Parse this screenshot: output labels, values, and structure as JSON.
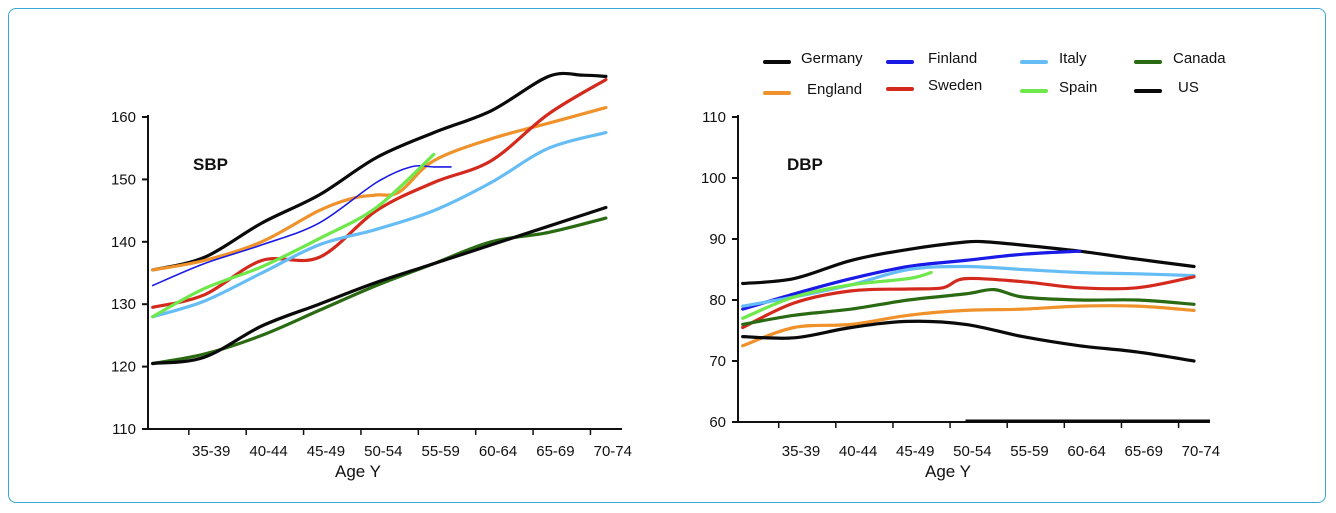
{
  "colors": {
    "Germany": "#0a0a0a",
    "England": "#f0922b",
    "Finland": "#1a1ae6",
    "Sweden": "#d42a1e",
    "Italy": "#66bdf5",
    "Spain": "#6ee84a",
    "Canada": "#2a6a12",
    "US": "#0a0a0a"
  },
  "legend": {
    "entries": [
      "Germany",
      "England",
      "Finland",
      "Sweden",
      "Italy",
      "Spain",
      "Canada",
      "US"
    ]
  },
  "chart_data": [
    {
      "type": "line",
      "title": "SBP",
      "xlabel": "Age Y",
      "categories": [
        "35-39",
        "40-44",
        "45-49",
        "50-54",
        "55-59",
        "60-64",
        "65-69",
        "70-74"
      ],
      "yticks": [
        110,
        120,
        130,
        140,
        150,
        160
      ],
      "ylim": [
        110,
        167
      ],
      "series": [
        {
          "name": "Germany",
          "x": [
            30.5,
            35,
            40,
            45,
            50,
            55,
            60,
            65,
            68,
            70
          ],
          "y": [
            135.5,
            137.5,
            143,
            147.5,
            153.5,
            157.5,
            161,
            166.5,
            166.7,
            166.5
          ]
        },
        {
          "name": "England",
          "x": [
            30.5,
            35,
            40,
            45,
            48,
            50,
            52,
            55,
            60,
            65,
            70
          ],
          "y": [
            135.5,
            137,
            140,
            145,
            147,
            147.5,
            148,
            153,
            156.5,
            159,
            161.5
          ]
        },
        {
          "name": "Finland",
          "x": [
            30.5,
            35,
            40,
            45,
            50,
            53,
            55,
            56.5
          ],
          "y": [
            133,
            136.5,
            139.5,
            143,
            149.5,
            152,
            152,
            152
          ]
        },
        {
          "name": "Sweden",
          "x": [
            30.5,
            35,
            40,
            45,
            50,
            55,
            60,
            65,
            70
          ],
          "y": [
            129.5,
            131.5,
            137,
            137.5,
            145,
            149.5,
            153,
            160.5,
            166
          ]
        },
        {
          "name": "Italy",
          "x": [
            30.5,
            35,
            40,
            45,
            50,
            55,
            60,
            65,
            70
          ],
          "y": [
            128,
            130.5,
            135,
            139.5,
            142,
            145,
            149.5,
            155,
            157.5
          ]
        },
        {
          "name": "Canada",
          "x": [
            30.5,
            35,
            40,
            45,
            50,
            55,
            60,
            65,
            70
          ],
          "y": [
            120.5,
            122,
            125,
            129,
            133,
            136.5,
            140,
            141.5,
            143.8
          ]
        },
        {
          "name": "Spain",
          "x": [
            30.5,
            35,
            40,
            45,
            50,
            55,
            60,
            65,
            70
          ],
          "y": [
            128,
            132.5,
            136,
            140.5,
            145.5,
            154,
            null,
            null,
            null
          ]
        },
        {
          "name": "US",
          "x": [
            30.5,
            35,
            40,
            45,
            50,
            55,
            60,
            65,
            70
          ],
          "y": [
            120.5,
            121.5,
            126.5,
            130,
            133.5,
            136.5,
            139.5,
            142.5,
            145.5
          ]
        }
      ]
    },
    {
      "type": "line",
      "title": "DBP",
      "xlabel": "Age Y",
      "categories": [
        "35-39",
        "40-44",
        "45-49",
        "50-54",
        "55-59",
        "60-64",
        "65-69",
        "70-74"
      ],
      "yticks": [
        60,
        70,
        80,
        90,
        100,
        110
      ],
      "ylim": [
        60,
        110
      ],
      "series": [
        {
          "name": "Germany",
          "x": [
            30.5,
            35,
            40,
            45,
            50,
            52,
            55,
            60,
            65,
            70
          ],
          "y": [
            82.7,
            83.5,
            86.5,
            88.3,
            89.5,
            89.5,
            89,
            88,
            86.7,
            85.5
          ]
        },
        {
          "name": "Finland",
          "x": [
            30.5,
            35,
            40,
            45,
            50,
            55,
            60
          ],
          "y": [
            78.5,
            81,
            83.5,
            85.5,
            86.5,
            87.5,
            88
          ]
        },
        {
          "name": "Italy",
          "x": [
            30.5,
            35,
            40,
            45,
            50,
            55,
            60,
            65,
            70
          ],
          "y": [
            79,
            80.5,
            82.5,
            85,
            85.5,
            85,
            84.5,
            84.3,
            84
          ]
        },
        {
          "name": "Spain",
          "x": [
            30.5,
            35,
            40,
            45,
            47
          ],
          "y": [
            77,
            80.5,
            82.5,
            83.5,
            84.5
          ]
        },
        {
          "name": "Sweden",
          "x": [
            30.5,
            35,
            40,
            45,
            48,
            50,
            55,
            60,
            65,
            70
          ],
          "y": [
            75.5,
            79.5,
            81.5,
            81.8,
            82,
            83.5,
            83,
            82,
            82,
            83.8
          ]
        },
        {
          "name": "Canada",
          "x": [
            30.5,
            35,
            40,
            45,
            50,
            52.5,
            55,
            60,
            65,
            70
          ],
          "y": [
            76,
            77.5,
            78.5,
            80,
            81,
            81.7,
            80.5,
            80,
            80,
            79.3
          ]
        },
        {
          "name": "England",
          "x": [
            30.5,
            35,
            40,
            45,
            50,
            55,
            60,
            65,
            70
          ],
          "y": [
            72.5,
            75.5,
            76,
            77.5,
            78.3,
            78.5,
            79,
            79,
            78.3
          ]
        },
        {
          "name": "US",
          "x": [
            30.5,
            35,
            40,
            45,
            50,
            55,
            60,
            65,
            70
          ],
          "y": [
            74,
            73.8,
            75.5,
            76.5,
            76,
            74,
            72.5,
            71.5,
            70
          ]
        }
      ]
    }
  ]
}
